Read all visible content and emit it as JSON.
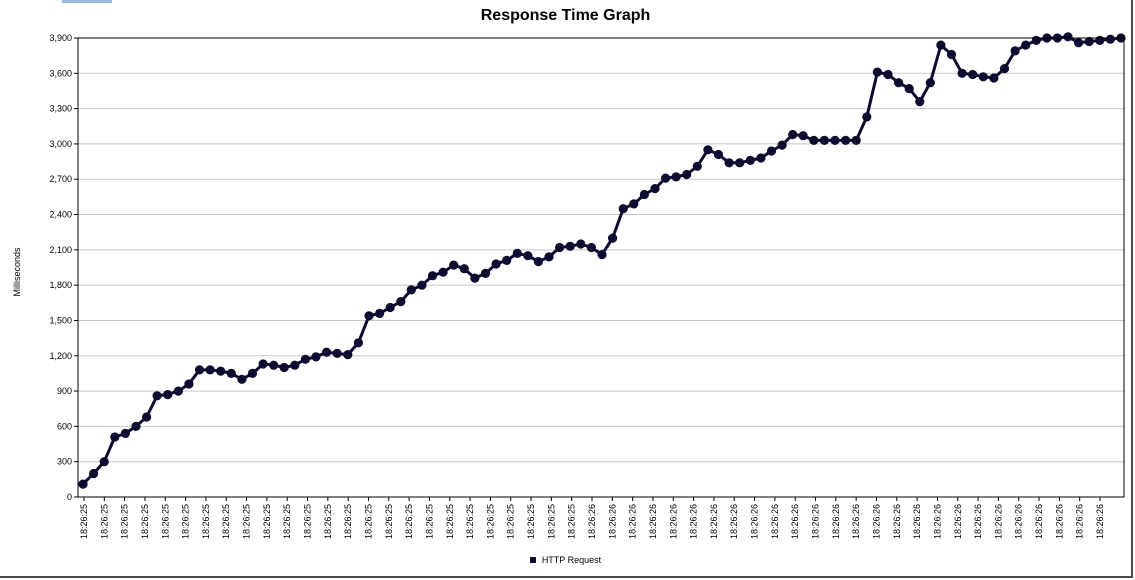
{
  "chart_data": {
    "type": "line",
    "title": "Response Time Graph",
    "xlabel": "",
    "ylabel": "Milliseconds",
    "ylim": [
      0,
      3900
    ],
    "yticks": [
      0,
      300,
      600,
      900,
      1200,
      1500,
      1800,
      2100,
      2400,
      2700,
      3000,
      3300,
      3600,
      3900
    ],
    "ytick_labels": [
      "0",
      "300",
      "600",
      "900",
      "1,200",
      "1,500",
      "1,800",
      "2,100",
      "2,400",
      "2,700",
      "3,000",
      "3,300",
      "3,600",
      "3,900"
    ],
    "grid": true,
    "legend_position": "bottom-center",
    "x_tick_labels": [
      "18:26:25",
      "18:26:25",
      "18:26:25",
      "18:26:25",
      "18:26:25",
      "18:26:25",
      "18:26:25",
      "18:26:25",
      "18:26:25",
      "18:26:25",
      "18:26:25",
      "18:26:25",
      "18:26:25",
      "18:26:25",
      "18:26:25",
      "18:26:25",
      "18:26:25",
      "18:26:25",
      "18:26:25",
      "18:26:25",
      "18:26:25",
      "18:26:25",
      "18:26:25",
      "18:26:25",
      "18:26:25",
      "18:26:26",
      "18:26:26",
      "18:26:26",
      "18:26:26",
      "18:26:26",
      "18:26:26",
      "18:26:26",
      "18:26:26",
      "18:26:26",
      "18:26:26",
      "18:26:26",
      "18:26:26",
      "18:26:26",
      "18:26:26",
      "18:26:26",
      "18:26:26",
      "18:26:26",
      "18:26:26",
      "18:26:26",
      "18:26:26",
      "18:26:26",
      "18:26:26",
      "18:26:26",
      "18:26:26",
      "18:26:26",
      "18:26:26"
    ],
    "series": [
      {
        "name": "HTTP Request",
        "color": "#0d0b30",
        "values": [
          110,
          200,
          300,
          510,
          540,
          600,
          680,
          860,
          870,
          900,
          960,
          1080,
          1080,
          1070,
          1050,
          1000,
          1050,
          1130,
          1120,
          1100,
          1120,
          1170,
          1190,
          1230,
          1220,
          1210,
          1310,
          1540,
          1560,
          1610,
          1660,
          1760,
          1800,
          1880,
          1910,
          1970,
          1940,
          1860,
          1900,
          1980,
          2010,
          2070,
          2050,
          2000,
          2040,
          2120,
          2130,
          2150,
          2120,
          2060,
          2200,
          2450,
          2490,
          2570,
          2620,
          2710,
          2720,
          2740,
          2810,
          2950,
          2910,
          2840,
          2840,
          2860,
          2880,
          2940,
          2990,
          3080,
          3070,
          3030,
          3030,
          3030,
          3030,
          3030,
          3230,
          3610,
          3590,
          3520,
          3470,
          3360,
          3520,
          3840,
          3760,
          3600,
          3590,
          3570,
          3560,
          3640,
          3790,
          3840,
          3880,
          3900,
          3900,
          3910,
          3860,
          3870,
          3880,
          3890,
          3900
        ]
      }
    ]
  }
}
